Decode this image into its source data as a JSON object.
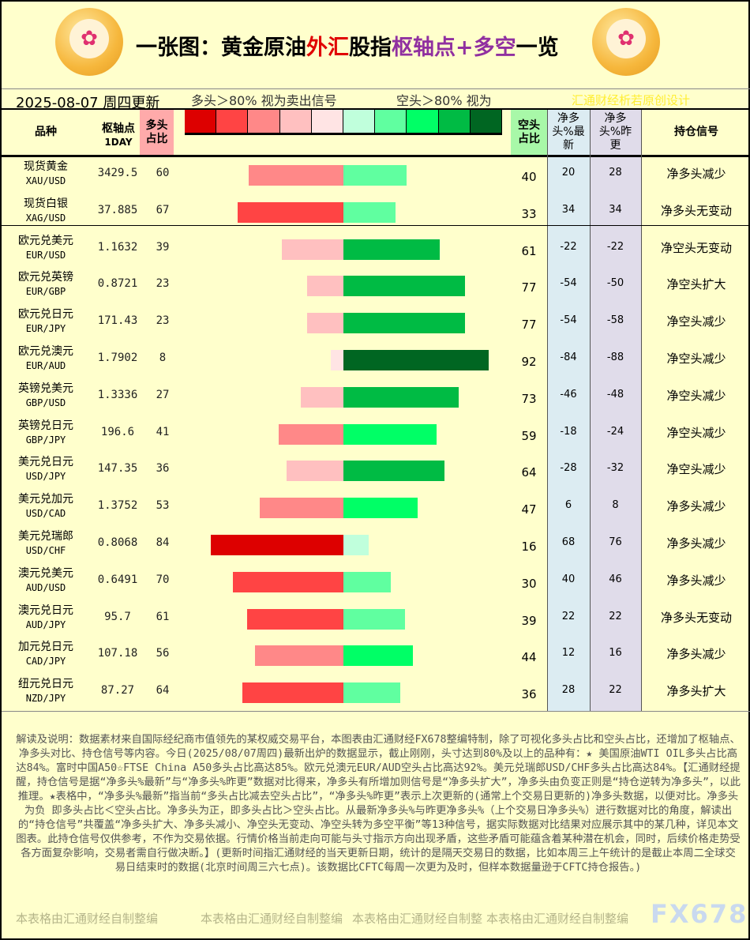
{
  "header": {
    "title_a": "一张图：黄金原油",
    "title_b": "外汇",
    "title_c": "股指",
    "title_d": "枢轴点+多空",
    "title_e": "一览",
    "date": "2025-08-07 周四更新",
    "long_signal": "多头＞80% 视为卖出信号",
    "short_signal": "空头＞80% 视为",
    "credit": "汇通财经析若原创设计"
  },
  "legend_colors": [
    "#dd0000",
    "#ff4444",
    "#ff8888",
    "#ffc0c0",
    "#ffe4e4",
    "#c0ffdc",
    "#60ffa0",
    "#00ff66",
    "#00bb44",
    "#006622"
  ],
  "columns": {
    "name": "品种",
    "pivot": "枢轴点",
    "pivot_sub": "1DAY",
    "long": "多头占比",
    "short": "空头占比",
    "net_new": "净多头%最新",
    "net_prev": "净多头%昨更",
    "signal": "持仓信号"
  },
  "rows": [
    {
      "name": "现货黄金",
      "code": "XAU/USD",
      "pivot": "3429.5",
      "long": 60,
      "short": 40,
      "net_new": "20",
      "net_prev": "28",
      "signal": "净多头减少"
    },
    {
      "name": "现货白银",
      "code": "XAG/USD",
      "pivot": "37.885",
      "long": 67,
      "short": 33,
      "net_new": "34",
      "net_prev": "34",
      "signal": "净多头无变动"
    },
    {
      "name": "欧元兑美元",
      "code": "EUR/USD",
      "pivot": "1.1632",
      "long": 39,
      "short": 61,
      "net_new": "-22",
      "net_prev": "-22",
      "signal": "净空头无变动"
    },
    {
      "name": "欧元兑英镑",
      "code": "EUR/GBP",
      "pivot": "0.8721",
      "long": 23,
      "short": 77,
      "net_new": "-54",
      "net_prev": "-50",
      "signal": "净空头扩大"
    },
    {
      "name": "欧元兑日元",
      "code": "EUR/JPY",
      "pivot": "171.43",
      "long": 23,
      "short": 77,
      "net_new": "-54",
      "net_prev": "-58",
      "signal": "净空头减少"
    },
    {
      "name": "欧元兑澳元",
      "code": "EUR/AUD",
      "pivot": "1.7902",
      "long": 8,
      "short": 92,
      "net_new": "-84",
      "net_prev": "-88",
      "signal": "净空头减少"
    },
    {
      "name": "英镑兑美元",
      "code": "GBP/USD",
      "pivot": "1.3336",
      "long": 27,
      "short": 73,
      "net_new": "-46",
      "net_prev": "-48",
      "signal": "净空头减少"
    },
    {
      "name": "英镑兑日元",
      "code": "GBP/JPY",
      "pivot": "196.6",
      "long": 41,
      "short": 59,
      "net_new": "-18",
      "net_prev": "-24",
      "signal": "净空头减少"
    },
    {
      "name": "美元兑日元",
      "code": "USD/JPY",
      "pivot": "147.35",
      "long": 36,
      "short": 64,
      "net_new": "-28",
      "net_prev": "-32",
      "signal": "净空头减少"
    },
    {
      "name": "美元兑加元",
      "code": "USD/CAD",
      "pivot": "1.3752",
      "long": 53,
      "short": 47,
      "net_new": "6",
      "net_prev": "8",
      "signal": "净多头减少"
    },
    {
      "name": "美元兑瑞郎",
      "code": "USD/CHF",
      "pivot": "0.8068",
      "long": 84,
      "short": 16,
      "net_new": "68",
      "net_prev": "76",
      "signal": "净多头减少"
    },
    {
      "name": "澳元兑美元",
      "code": "AUD/USD",
      "pivot": "0.6491",
      "long": 70,
      "short": 30,
      "net_new": "40",
      "net_prev": "46",
      "signal": "净多头减少"
    },
    {
      "name": "澳元兑日元",
      "code": "AUD/JPY",
      "pivot": "95.7",
      "long": 61,
      "short": 39,
      "net_new": "22",
      "net_prev": "22",
      "signal": "净多头无变动"
    },
    {
      "name": "加元兑日元",
      "code": "CAD/JPY",
      "pivot": "107.18",
      "long": 56,
      "short": 44,
      "net_new": "12",
      "net_prev": "16",
      "signal": "净多头减少"
    },
    {
      "name": "纽元兑日元",
      "code": "NZD/JPY",
      "pivot": "87.27",
      "long": 64,
      "short": 36,
      "net_new": "28",
      "net_prev": "22",
      "signal": "净多头扩大"
    }
  ],
  "footer": {
    "text": "解读及说明：数据素材来自国际经纪商市值领先的某权威交易平台，本图表由汇通财经FX678整编特制，除了可视化多头占比和空头占比，还增加了枢轴点、净多头对比、持仓信号等内容。今日(2025/08/07周四)最新出炉的数据显示，截止刚刚，头寸达到80%及以上的品种有：★ 美国原油WTI OIL多头占比高达84%。富时中国A50☆FTSE China A50多头占比高达85%。欧元兑澳元EUR/AUD空头占比高达92%。美元兑瑞郎USD/CHF多头占比高达84%。【汇通财经提醒，持仓信号是据“净多头%最新”与“净多头%昨更”数据对比得来，净多头有所增加则信号是“净多头扩大”，净多头由负变正则是“持仓逆转为净多头”，以此推理。★表格中，“净多头%最新”指当前“多头占比减去空头占比”，“净多头%昨更”表示上次更新的(通常上个交易日更新的)净多头数据，以便对比。净多头为负 即多头占比＜空头占比。净多头为正，即多头占比＞空头占比。从最新净多头%与昨更净多头%（上个交易日净多头%）进行数据对比的角度，解读出的“持仓信号”共覆盖“净多头扩大、净多头减小、净空头无变动、净空头转为多空平衡”等13种信号，据实际数据对比结果对应展示其中的某几种，详见本文图表。此持仓信号仅供参考，不作为交易依据。行情价格当前走向可能与头寸指示方向出现矛盾，这些矛盾可能蕴含着某种潜在机会，同时，后续价格走势受各方面复杂影响，交易者需自行做决断。】(更新时间指汇通财经的当天更新日期，统计的是隔天交易日的数据，比如本周三上午统计的是截止本周二全球交易日结束时的数据(北京时间周三六七点)。该数据比CFTC每周一次更为及时，但样本数据量逊于CFTC持仓报告。)",
    "wm1": "本表格由汇通财经自制整编",
    "wm2": "本表格由汇通财经自制整编",
    "wm3": "本表格由汇通财经自制整",
    "wm4": "本表格由汇通财经自制整编",
    "logo": "FX678"
  }
}
